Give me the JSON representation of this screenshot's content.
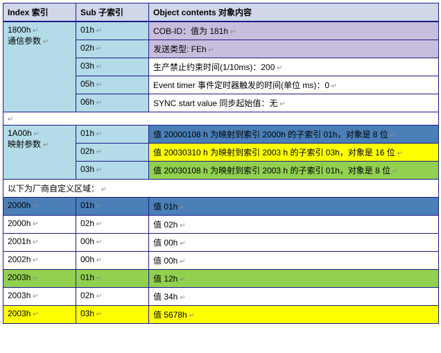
{
  "colors": {
    "header_bg": "#d0d7e8",
    "border": "#1a1a8a",
    "lightblue": "#b4dbe8",
    "purple": "#c8bddc",
    "blue": "#4a7fb8",
    "yellow": "#ffff00",
    "green": "#92d050",
    "white": "#ffffff"
  },
  "header": {
    "col1": "Index 索引",
    "col2": "Sub 子索引",
    "col3": "Object contents 对象内容"
  },
  "block1": {
    "index_line1": "1800h",
    "index_line2": "通信参数",
    "rows": [
      {
        "sub": "01h",
        "content": "COB-ID：值为 181h"
      },
      {
        "sub": "02h",
        "content": "发送类型: FEh"
      },
      {
        "sub": "03h",
        "content": "生产禁止约束时间(1/10ms)：200"
      },
      {
        "sub": "05h",
        "content": "Event timer 事件定时器触发的时间(单位 ms)：0"
      },
      {
        "sub": "06h",
        "content": "SYNC start value 同步起始值：无"
      }
    ]
  },
  "block2": {
    "index_line1": "1A00h",
    "index_line2": "映射参数",
    "rows": [
      {
        "sub": "01h",
        "content": "值 20000108 h 为映射到索引 2000h 的子索引 01h，对象是 8 位",
        "sub_bg": "#b4dbe8",
        "content_bg": "#4a7fb8"
      },
      {
        "sub": "02h",
        "content": "值 20030310 h 为映射到索引 2003 h 的子索引 03h，对象是 16 位",
        "sub_bg": "#b4dbe8",
        "content_bg": "#ffff00"
      },
      {
        "sub": "03h",
        "content": "值 20030108 h 为映射到索引 2003 h 的子索引 01h，对象是 8 位",
        "sub_bg": "#b4dbe8",
        "content_bg": "#92d050"
      }
    ]
  },
  "note": "以下为厂商自定义区域：",
  "block3": [
    {
      "index": "2000h",
      "sub": "01h",
      "content": "值 01h",
      "bg": "#4a7fb8"
    },
    {
      "index": "2000h",
      "sub": "02h",
      "content": "值 02h",
      "bg": "#ffffff"
    },
    {
      "index": "2001h",
      "sub": "00h",
      "content": "值 00h",
      "bg": "#ffffff"
    },
    {
      "index": "2002h",
      "sub": "00h",
      "content": "值 00h",
      "bg": "#ffffff"
    },
    {
      "index": "2003h",
      "sub": "01h",
      "content": "值 12h",
      "bg": "#92d050"
    },
    {
      "index": "2003h",
      "sub": "02h",
      "content": "值 34h",
      "bg": "#ffffff"
    },
    {
      "index": "2003h",
      "sub": "03h",
      "content": "值 5678h",
      "bg": "#ffff00"
    }
  ]
}
